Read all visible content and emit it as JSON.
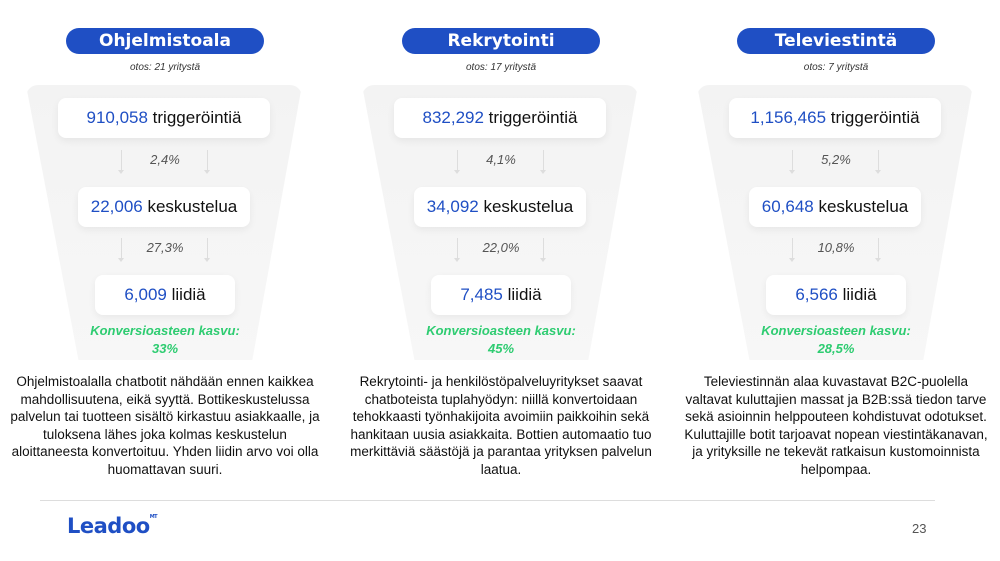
{
  "columns": [
    {
      "title": "Ohjelmistoala",
      "sample": "otos: 21 yritystä",
      "triggers": "910,058",
      "triggers_label": "triggeröintiä",
      "rate1": "2,4%",
      "conversations": "22,006",
      "conversations_label": "keskustelua",
      "rate2": "27,3%",
      "leads": "6,009",
      "leads_label": "liidiä",
      "growth_label": "Konversioasteen kasvu:",
      "growth": "33%",
      "description": "Ohjelmistoalalla chatbotit nähdään ennen kaikkea mahdollisuutena, eikä syyttä. Bottikeskustelussa palvelun tai tuotteen sisältö kirkastuu asiakkaalle, ja tuloksena lähes joka kolmas keskustelun aloittaneesta konvertoituu. Yhden liidin arvo voi olla huomattavan suuri."
    },
    {
      "title": "Rekrytointi",
      "sample": "otos: 17 yritystä",
      "triggers": "832,292",
      "triggers_label": "triggeröintiä",
      "rate1": "4,1%",
      "conversations": "34,092",
      "conversations_label": "keskustelua",
      "rate2": "22,0%",
      "leads": "7,485",
      "leads_label": "liidiä",
      "growth_label": "Konversioasteen kasvu:",
      "growth": "45%",
      "description": "Rekrytointi- ja henkilöstöpalveluyritykset saavat chatboteista tuplahyödyn: niillä konvertoidaan tehokkaasti työnhakijoita avoimiin paikkoihin sekä hankitaan uusia asiakkaita. Bottien automaatio tuo merkittäviä säästöjä ja parantaa yrityksen palvelun laatua."
    },
    {
      "title": "Televiestintä",
      "sample": "otos: 7 yritystä",
      "triggers": "1,156,465",
      "triggers_label": "triggeröintiä",
      "rate1": "5,2%",
      "conversations": "60,648",
      "conversations_label": "keskustelua",
      "rate2": "10,8%",
      "leads": "6,566",
      "leads_label": "liidiä",
      "growth_label": "Konversioasteen kasvu:",
      "growth": "28,5%",
      "description": "Televiestinnän alaa kuvastavat B2C-puolella valtavat kuluttajien massat ja B2B:ssä tiedon tarve sekä asioinnin helppouteen kohdistuvat odotukset. Kuluttajille botit tarjoavat nopean viestintäkanavan, ja yrityksille ne tekevät ratkaisun kustomoinnista helpompaa."
    }
  ],
  "footer": {
    "logo": "Leadoo",
    "logo_mark": "MT",
    "page_number": "23"
  },
  "colors": {
    "accent": "#1f4fc4",
    "growth": "#2ecc71"
  }
}
